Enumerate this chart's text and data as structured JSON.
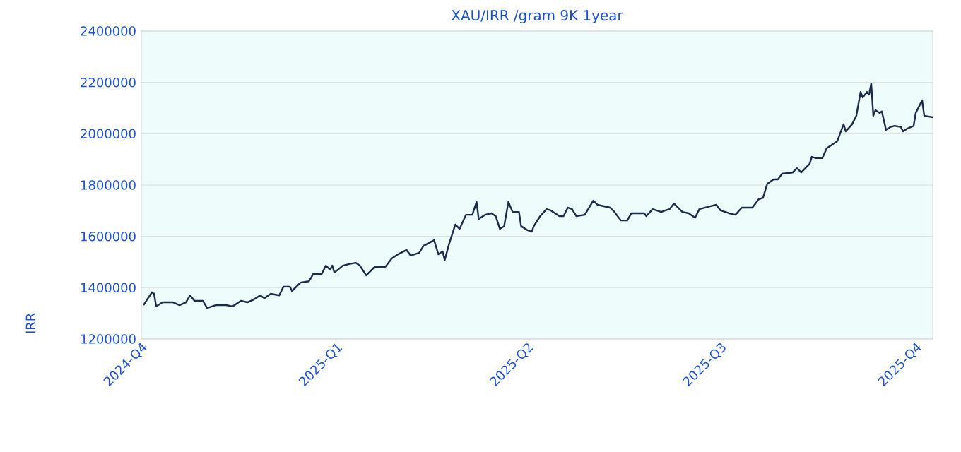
{
  "chart_data": {
    "type": "line",
    "title": "XAU/IRR /gram 9K 1year",
    "ylabel": "IRR",
    "color": "#1a2b4c",
    "grid": "y",
    "xlim": [
      "2024-10-01",
      "2025-10-09"
    ],
    "ylim": [
      1200000,
      2400000
    ],
    "xticks": [
      {
        "value": "2024-10-01",
        "label": "2024-Q4"
      },
      {
        "value": "2025-01-01",
        "label": "2025-Q1"
      },
      {
        "value": "2025-04-01",
        "label": "2025-Q2"
      },
      {
        "value": "2025-07-01",
        "label": "2025-Q3"
      },
      {
        "value": "2025-10-01",
        "label": "2025-Q4"
      }
    ],
    "yticks": [
      1200000,
      1400000,
      1600000,
      1800000,
      2000000,
      2200000,
      2400000
    ],
    "x": [
      "2024-10-02",
      "2024-10-06",
      "2024-10-07",
      "2024-10-08",
      "2024-10-11",
      "2024-10-16",
      "2024-10-19",
      "2024-10-22",
      "2024-10-24",
      "2024-10-26",
      "2024-10-30",
      "2024-11-01",
      "2024-11-05",
      "2024-11-10",
      "2024-11-13",
      "2024-11-17",
      "2024-11-20",
      "2024-11-23",
      "2024-11-26",
      "2024-11-28",
      "2024-12-01",
      "2024-12-05",
      "2024-12-07",
      "2024-12-10",
      "2024-12-11",
      "2024-12-15",
      "2024-12-19",
      "2024-12-21",
      "2024-12-25",
      "2024-12-27",
      "2024-12-29",
      "2024-12-30",
      "2024-12-31",
      "2025-01-04",
      "2025-01-07",
      "2025-01-10",
      "2025-01-12",
      "2025-01-15",
      "2025-01-19",
      "2025-01-24",
      "2025-01-27",
      "2025-01-30",
      "2025-02-03",
      "2025-02-05",
      "2025-02-09",
      "2025-02-11",
      "2025-02-16",
      "2025-02-18",
      "2025-02-20",
      "2025-02-21",
      "2025-02-23",
      "2025-02-26",
      "2025-02-28",
      "2025-03-03",
      "2025-03-06",
      "2025-03-08",
      "2025-03-09",
      "2025-03-12",
      "2025-03-15",
      "2025-03-17",
      "2025-03-19",
      "2025-03-21",
      "2025-03-23",
      "2025-03-25",
      "2025-03-28",
      "2025-03-29",
      "2025-04-01",
      "2025-04-03",
      "2025-04-04",
      "2025-04-07",
      "2025-04-10",
      "2025-04-12",
      "2025-04-16",
      "2025-04-18",
      "2025-04-20",
      "2025-04-22",
      "2025-04-24",
      "2025-04-28",
      "2025-05-02",
      "2025-05-04",
      "2025-05-10",
      "2025-05-12",
      "2025-05-15",
      "2025-05-18",
      "2025-05-20",
      "2025-05-26",
      "2025-05-27",
      "2025-05-30",
      "2025-06-03",
      "2025-06-05",
      "2025-06-07",
      "2025-06-09",
      "2025-06-13",
      "2025-06-16",
      "2025-06-19",
      "2025-06-21",
      "2025-06-26",
      "2025-06-29",
      "2025-07-01",
      "2025-07-05",
      "2025-07-08",
      "2025-07-11",
      "2025-07-16",
      "2025-07-19",
      "2025-07-21",
      "2025-07-23",
      "2025-07-26",
      "2025-07-28",
      "2025-07-30",
      "2025-08-04",
      "2025-08-06",
      "2025-08-08",
      "2025-08-12",
      "2025-08-13",
      "2025-08-15",
      "2025-08-18",
      "2025-08-20",
      "2025-08-22",
      "2025-08-25",
      "2025-08-26",
      "2025-08-28",
      "2025-08-29",
      "2025-09-01",
      "2025-09-03",
      "2025-09-05",
      "2025-09-06",
      "2025-09-08",
      "2025-09-09",
      "2025-09-10",
      "2025-09-11",
      "2025-09-12",
      "2025-09-14",
      "2025-09-15",
      "2025-09-17",
      "2025-09-19",
      "2025-09-21",
      "2025-09-24",
      "2025-09-25",
      "2025-09-27",
      "2025-09-30",
      "2025-10-01",
      "2025-10-04",
      "2025-10-05",
      "2025-10-09"
    ],
    "values": [
      1332000,
      1382000,
      1376000,
      1327000,
      1343000,
      1343000,
      1332000,
      1343000,
      1370000,
      1349000,
      1349000,
      1321000,
      1332000,
      1332000,
      1327000,
      1349000,
      1343000,
      1354000,
      1370000,
      1359000,
      1376000,
      1370000,
      1404000,
      1404000,
      1387000,
      1420000,
      1425000,
      1453000,
      1453000,
      1486000,
      1470000,
      1486000,
      1459000,
      1486000,
      1492000,
      1497000,
      1486000,
      1448000,
      1481000,
      1481000,
      1514000,
      1530000,
      1547000,
      1525000,
      1536000,
      1563000,
      1585000,
      1530000,
      1541000,
      1508000,
      1569000,
      1646000,
      1629000,
      1684000,
      1684000,
      1734000,
      1668000,
      1684000,
      1690000,
      1679000,
      1629000,
      1640000,
      1734000,
      1695000,
      1695000,
      1640000,
      1624000,
      1618000,
      1640000,
      1679000,
      1706000,
      1701000,
      1679000,
      1679000,
      1712000,
      1706000,
      1679000,
      1684000,
      1739000,
      1723000,
      1712000,
      1695000,
      1662000,
      1662000,
      1690000,
      1690000,
      1679000,
      1706000,
      1695000,
      1701000,
      1706000,
      1728000,
      1695000,
      1690000,
      1673000,
      1706000,
      1717000,
      1723000,
      1701000,
      1690000,
      1684000,
      1712000,
      1712000,
      1745000,
      1750000,
      1805000,
      1822000,
      1822000,
      1844000,
      1849000,
      1866000,
      1849000,
      1883000,
      1910000,
      1905000,
      1905000,
      1943000,
      1954000,
      1971000,
      1993000,
      2037000,
      2009000,
      2037000,
      2070000,
      2163000,
      2141000,
      2163000,
      2152000,
      2196000,
      2070000,
      2092000,
      2081000,
      2087000,
      2015000,
      2026000,
      2031000,
      2026000,
      2009000,
      2020000,
      2031000,
      2081000,
      2130000,
      2070000,
      2064000
    ]
  }
}
